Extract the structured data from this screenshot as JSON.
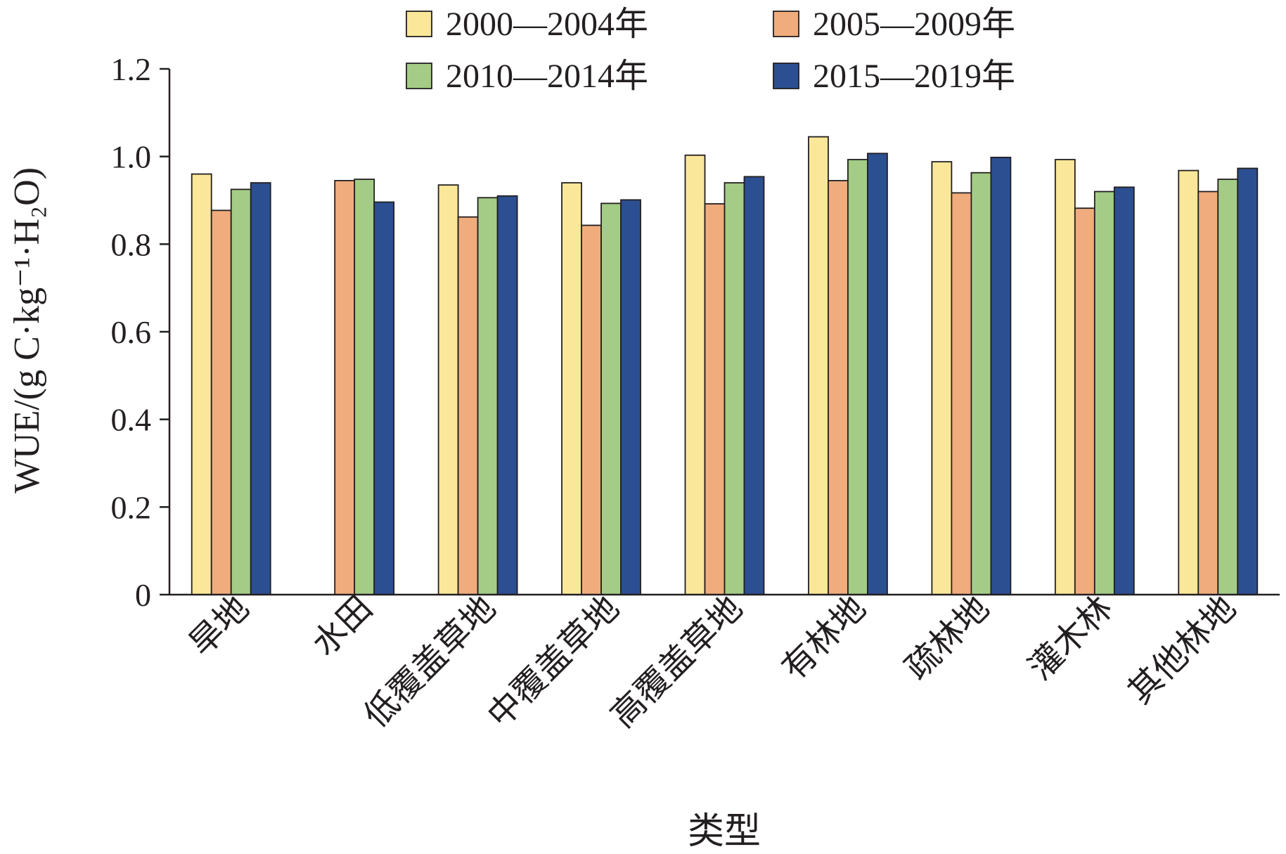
{
  "chart_data": {
    "type": "bar",
    "xlabel": "类型",
    "ylabel": "WUE/(g C·kg⁻¹·H₂O)",
    "ylim": [
      0,
      1.2
    ],
    "yticks": [
      0,
      0.2,
      0.4,
      0.6,
      0.8,
      1.0,
      1.2
    ],
    "ytick_labels": [
      "0",
      "0.2",
      "0.4",
      "0.6",
      "0.8",
      "1.0",
      "1.2"
    ],
    "grid": false,
    "legend_position": "top",
    "categories": [
      "旱地",
      "水田",
      "低覆盖草地",
      "中覆盖草地",
      "高覆盖草地",
      "有林地",
      "疏林地",
      "灌木林",
      "其他林地"
    ],
    "series": [
      {
        "name": "2000—2004年",
        "color": "#fbe79a",
        "values": [
          0.96,
          null,
          0.935,
          0.94,
          1.003,
          1.045,
          0.988,
          0.993,
          0.968
        ]
      },
      {
        "name": "2005—2009年",
        "color": "#f0ac7d",
        "values": [
          0.877,
          0.945,
          0.862,
          0.843,
          0.892,
          0.945,
          0.917,
          0.882,
          0.92
        ]
      },
      {
        "name": "2010—2014年",
        "color": "#a4cc86",
        "values": [
          0.925,
          0.948,
          0.906,
          0.893,
          0.94,
          0.993,
          0.963,
          0.92,
          0.948
        ]
      },
      {
        "name": "2015—2019年",
        "color": "#2c4f91",
        "values": [
          0.94,
          0.896,
          0.91,
          0.901,
          0.954,
          1.007,
          0.998,
          0.93,
          0.973
        ]
      }
    ]
  }
}
